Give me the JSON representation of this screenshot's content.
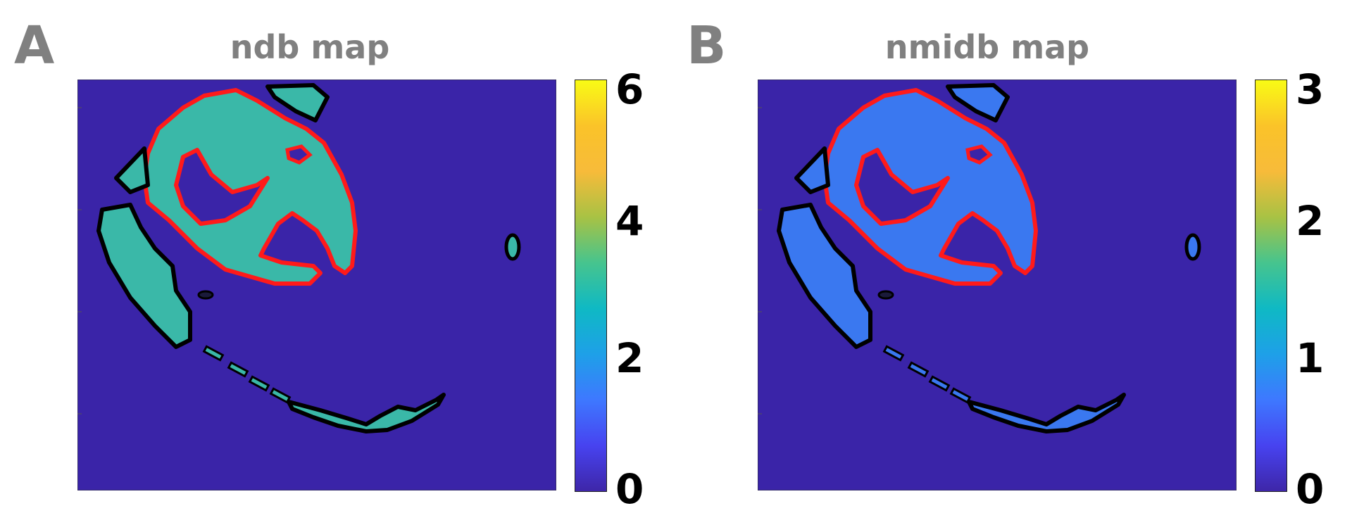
{
  "panels": [
    {
      "letter": "A",
      "title": "ndb map",
      "colorbar": {
        "min": 0,
        "max": 6,
        "ticks": [
          "0",
          "2",
          "4",
          "6"
        ]
      },
      "tissue_color": "#3ab8a8"
    },
    {
      "letter": "B",
      "title": "nmidb map",
      "colorbar": {
        "min": 0,
        "max": 3,
        "ticks": [
          "0",
          "1",
          "2",
          "3"
        ]
      },
      "tissue_color": "#3a78f0"
    }
  ],
  "colors": {
    "background_map": "#3a24a8",
    "outline_red": "#ff1a1a",
    "outline_black": "#000000",
    "colormap": [
      "#3e26a8",
      "#4743f0",
      "#3e78ff",
      "#1ea0e8",
      "#0fb9c4",
      "#46c48e",
      "#a8c244",
      "#f7bb3a",
      "#fac329",
      "#f9fb15"
    ]
  }
}
